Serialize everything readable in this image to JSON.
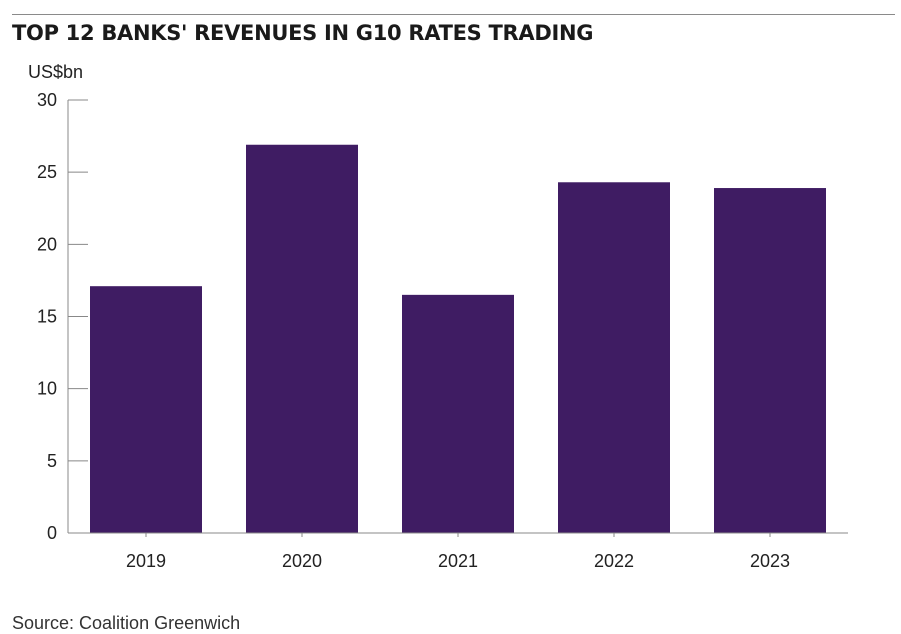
{
  "chart_data": {
    "type": "bar",
    "title": "TOP 12 BANKS' REVENUES IN G10 RATES TRADING",
    "ylabel": "US$bn",
    "xlabel": "",
    "categories": [
      "2019",
      "2020",
      "2021",
      "2022",
      "2023"
    ],
    "values": [
      17.1,
      26.9,
      16.5,
      24.3,
      23.9
    ],
    "ylim": [
      0,
      30
    ],
    "yticks": [
      0,
      5,
      10,
      15,
      20,
      25,
      30
    ],
    "ytick_labels": [
      "0",
      "5",
      "10",
      "15",
      "20",
      "25",
      "30"
    ],
    "grid": false,
    "legend": "none",
    "bar_color": "#3f1c63",
    "axis_color": "#888888"
  },
  "source": "Source: Coalition Greenwich"
}
